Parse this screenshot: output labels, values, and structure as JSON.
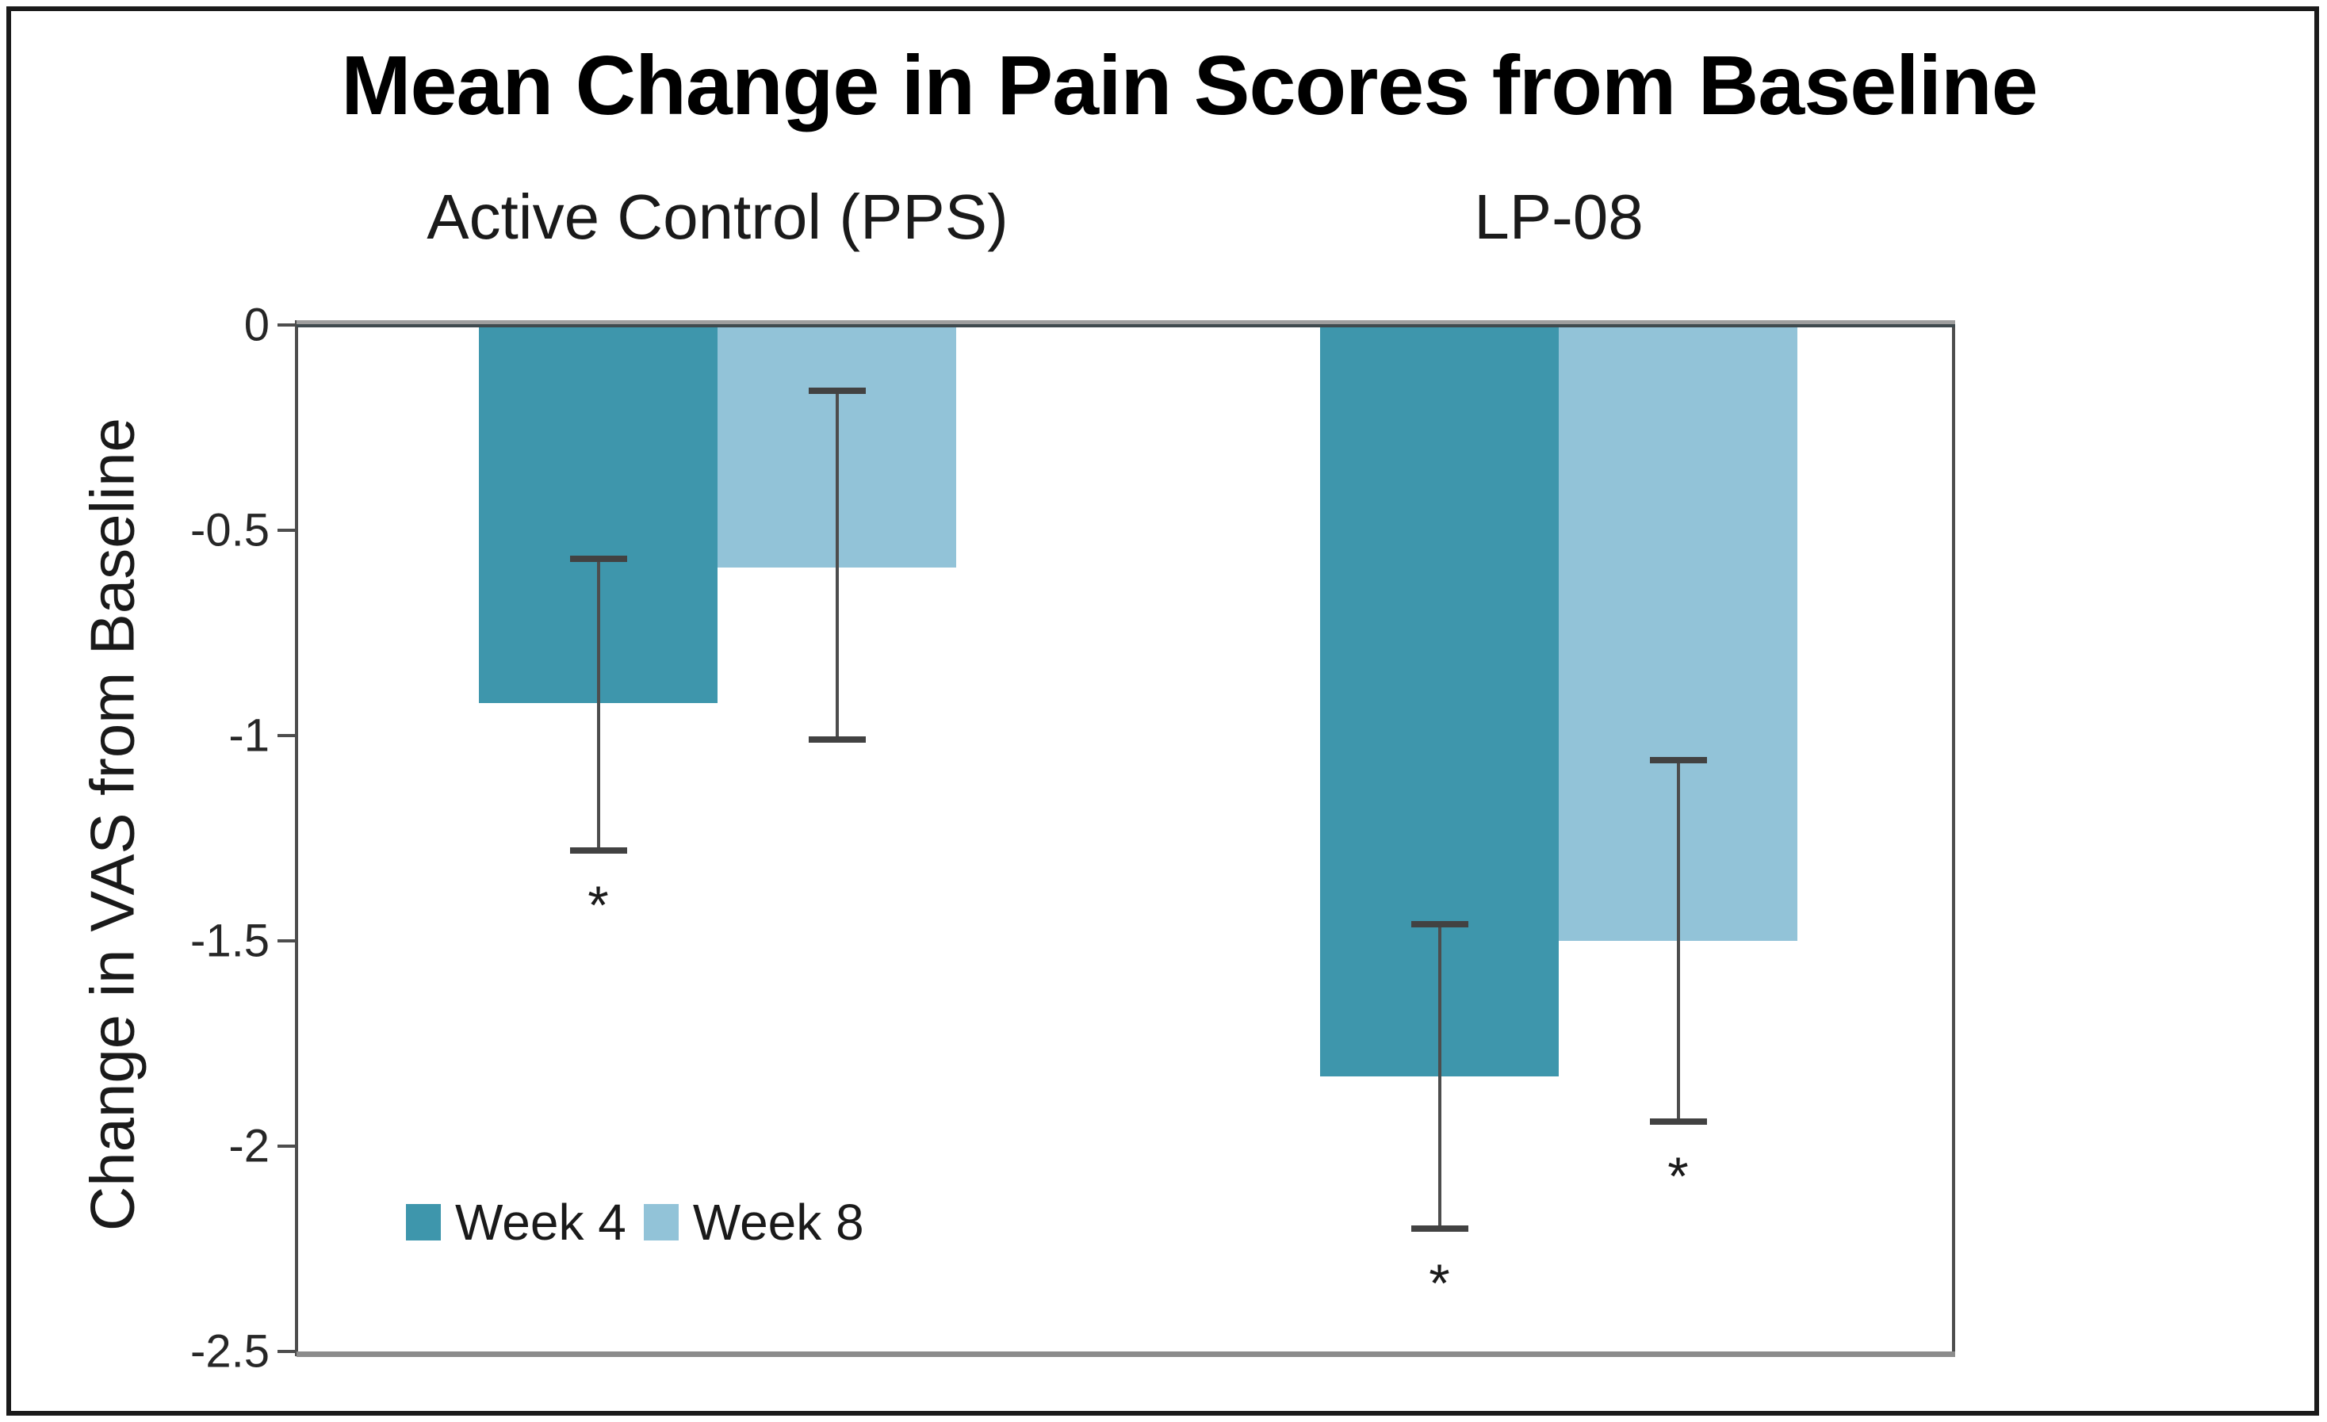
{
  "chart_data": {
    "type": "bar",
    "title": "Mean Change in Pain Scores from Baseline",
    "ylabel": "Change in VAS from Baseline",
    "xlabel": "",
    "categories": [
      "Active Control (PPS)",
      "LP-08"
    ],
    "series": [
      {
        "name": "Week 4",
        "color": "#3E96AC",
        "values": [
          -0.92,
          -1.83
        ],
        "error_high": [
          -0.57,
          -1.46
        ],
        "error_low": [
          -1.28,
          -2.2
        ],
        "significant": [
          true,
          true
        ]
      },
      {
        "name": "Week 8",
        "color": "#92C3D8",
        "values": [
          -0.59,
          -1.5
        ],
        "error_high": [
          -0.16,
          -1.06
        ],
        "error_low": [
          -1.01,
          -1.94
        ],
        "significant": [
          false,
          true
        ]
      }
    ],
    "yticks": [
      0,
      -0.5,
      -1,
      -1.5,
      -2,
      -2.5
    ],
    "ytick_labels": [
      "0",
      "-0.5",
      "-1",
      "-1.5",
      "-2",
      "-2.5"
    ],
    "ylim": [
      0,
      -2.5
    ],
    "grid": false,
    "legend_position": "inside-bottom-left",
    "significance_marker": "*"
  }
}
